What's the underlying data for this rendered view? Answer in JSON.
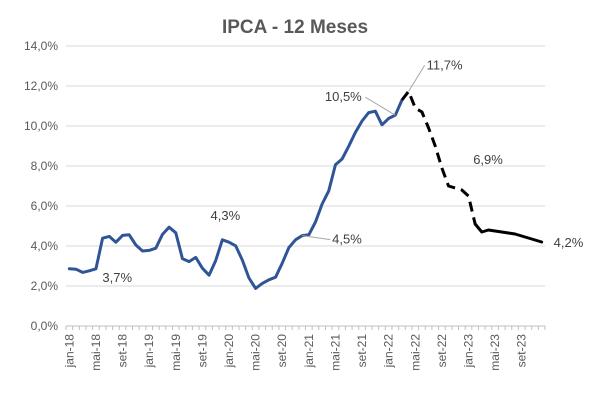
{
  "chart_data": {
    "type": "line",
    "title": "IPCA - 12 Meses",
    "xlabel": "",
    "ylabel": "",
    "ylim": [
      0,
      14
    ],
    "ytick_labels": [
      "0,0%",
      "2,0%",
      "4,0%",
      "6,0%",
      "8,0%",
      "10,0%",
      "12,0%",
      "14,0%"
    ],
    "x_tick_labels": [
      "jan-18",
      "mai-18",
      "set-18",
      "jan-19",
      "mai-19",
      "set-19",
      "jan-20",
      "mai-20",
      "set-20",
      "jan-21",
      "mai-21",
      "set-21",
      "jan-22",
      "mai-22",
      "set-22",
      "jan-23",
      "mai-23",
      "set-23"
    ],
    "grid": "horizontal",
    "legend": "none",
    "series": [
      {
        "style": "solid",
        "color": "#2F5597",
        "x": [
          "jan-18",
          "fev-18",
          "mar-18",
          "abr-18",
          "mai-18",
          "jun-18",
          "jul-18",
          "ago-18",
          "set-18",
          "out-18",
          "nov-18",
          "dez-18",
          "jan-19",
          "fev-19",
          "mar-19",
          "abr-19",
          "mai-19",
          "jun-19",
          "jul-19",
          "ago-19",
          "set-19",
          "out-19",
          "nov-19",
          "dez-19",
          "jan-20",
          "fev-20",
          "mar-20",
          "abr-20",
          "mai-20",
          "jun-20",
          "jul-20",
          "ago-20",
          "set-20",
          "out-20",
          "nov-20",
          "dez-20",
          "jan-21",
          "fev-21",
          "mar-21",
          "abr-21",
          "mai-21",
          "jun-21",
          "jul-21",
          "ago-21",
          "set-21",
          "out-21",
          "nov-21",
          "dez-21",
          "jan-22",
          "fev-22",
          "mar-22"
        ],
        "values": [
          2.86,
          2.84,
          2.68,
          2.76,
          2.86,
          4.39,
          4.48,
          4.19,
          4.53,
          4.56,
          4.05,
          3.75,
          3.78,
          3.89,
          4.58,
          4.94,
          4.66,
          3.37,
          3.22,
          3.43,
          2.89,
          2.54,
          3.27,
          4.31,
          4.19,
          4.01,
          3.3,
          2.4,
          1.88,
          2.13,
          2.31,
          2.44,
          3.14,
          3.92,
          4.31,
          4.52,
          4.56,
          5.2,
          6.1,
          6.76,
          8.06,
          8.35,
          8.99,
          9.68,
          10.25,
          10.67,
          10.74,
          10.06,
          10.38,
          10.54,
          11.3
        ]
      },
      {
        "style": "dashed",
        "color": "#000000",
        "x": [
          "mar-22",
          "abr-22",
          "mai-22",
          "jun-22",
          "jul-22",
          "ago-22",
          "set-22",
          "out-22",
          "nov-22",
          "dez-22",
          "jan-23",
          "fev-23"
        ],
        "values": [
          11.3,
          11.73,
          10.9,
          10.7,
          9.9,
          9.0,
          7.9,
          7.0,
          6.9,
          6.8,
          6.5,
          5.1
        ]
      },
      {
        "style": "solid",
        "color": "#000000",
        "x": [
          "fev-23",
          "mar-23",
          "abr-23",
          "mai-23",
          "jun-23",
          "jul-23",
          "ago-23",
          "set-23",
          "out-23",
          "nov-23",
          "dez-23"
        ],
        "values": [
          5.1,
          4.7,
          4.8,
          4.75,
          4.7,
          4.65,
          4.6,
          4.5,
          4.4,
          4.3,
          4.2
        ]
      }
    ],
    "annotations": [
      {
        "text": "3,7%",
        "x": "out-18",
        "y": 3.7
      },
      {
        "text": "4,3%",
        "x": "dez-19",
        "y": 4.31
      },
      {
        "text": "4,5%",
        "x": "dez-20",
        "y": 4.52
      },
      {
        "text": "10,5%",
        "x": "fev-22",
        "y": 10.54
      },
      {
        "text": "11,7%",
        "x": "abr-22",
        "y": 11.73
      },
      {
        "text": "6,9%",
        "x": "nov-22",
        "y": 6.9
      },
      {
        "text": "4,2%",
        "x": "dez-23",
        "y": 4.2
      }
    ]
  }
}
